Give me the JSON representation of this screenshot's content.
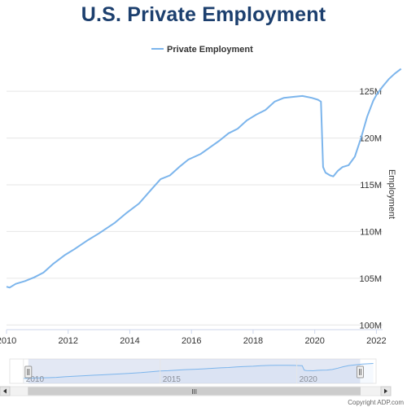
{
  "colors": {
    "title": "#1c3f6e",
    "series": "#7cb5ec",
    "grid": "#e6e6e6",
    "navigator_mask": "#ccd6eb"
  },
  "copyright": "Copyright ADP.com",
  "chart_data": {
    "type": "line",
    "title": "U.S. Private Employment",
    "ylabel": "Employment",
    "xlabel": "",
    "legend": {
      "placement": "top-center",
      "entries": [
        "Private Employment"
      ]
    },
    "grid": {
      "y": true,
      "x": false
    },
    "x_ticks": [
      "2010",
      "2012",
      "2014",
      "2016",
      "2018",
      "2020",
      "2022"
    ],
    "y_ticks": [
      "100M",
      "105M",
      "110M",
      "115M",
      "120M",
      "125M"
    ],
    "ylim": [
      99.5,
      127.8
    ],
    "xlim": [
      2010.0,
      2022.2
    ],
    "navigator": {
      "x_ticks": [
        "2010",
        "2015",
        "2020"
      ],
      "scrollbar_icon": "III"
    },
    "series": [
      {
        "name": "Private Employment",
        "unit": "millions",
        "points": [
          [
            2010.0,
            104.1
          ],
          [
            2010.1,
            104.0
          ],
          [
            2010.3,
            104.4
          ],
          [
            2010.6,
            104.7
          ],
          [
            2010.9,
            105.1
          ],
          [
            2011.2,
            105.6
          ],
          [
            2011.5,
            106.5
          ],
          [
            2011.9,
            107.5
          ],
          [
            2012.2,
            108.1
          ],
          [
            2012.6,
            109.0
          ],
          [
            2013.0,
            109.8
          ],
          [
            2013.5,
            110.9
          ],
          [
            2013.9,
            112.0
          ],
          [
            2014.3,
            113.0
          ],
          [
            2014.7,
            114.5
          ],
          [
            2015.0,
            115.6
          ],
          [
            2015.3,
            116.0
          ],
          [
            2015.6,
            116.9
          ],
          [
            2015.9,
            117.7
          ],
          [
            2016.3,
            118.3
          ],
          [
            2016.6,
            119.0
          ],
          [
            2016.9,
            119.7
          ],
          [
            2017.2,
            120.5
          ],
          [
            2017.5,
            121.0
          ],
          [
            2017.8,
            121.9
          ],
          [
            2018.1,
            122.5
          ],
          [
            2018.4,
            123.0
          ],
          [
            2018.7,
            123.9
          ],
          [
            2019.0,
            124.3
          ],
          [
            2019.3,
            124.4
          ],
          [
            2019.6,
            124.5
          ],
          [
            2019.9,
            124.3
          ],
          [
            2020.1,
            124.1
          ],
          [
            2020.2,
            123.9
          ],
          [
            2020.27,
            116.9
          ],
          [
            2020.35,
            116.3
          ],
          [
            2020.5,
            116.0
          ],
          [
            2020.6,
            115.9
          ],
          [
            2020.75,
            116.5
          ],
          [
            2020.9,
            116.9
          ],
          [
            2021.1,
            117.1
          ],
          [
            2021.3,
            118.0
          ],
          [
            2021.5,
            120.0
          ],
          [
            2021.7,
            122.3
          ],
          [
            2021.9,
            124.0
          ],
          [
            2022.0,
            124.6
          ],
          [
            2022.2,
            125.5
          ],
          [
            2022.4,
            126.3
          ],
          [
            2022.6,
            126.9
          ],
          [
            2022.8,
            127.4
          ]
        ]
      }
    ]
  }
}
